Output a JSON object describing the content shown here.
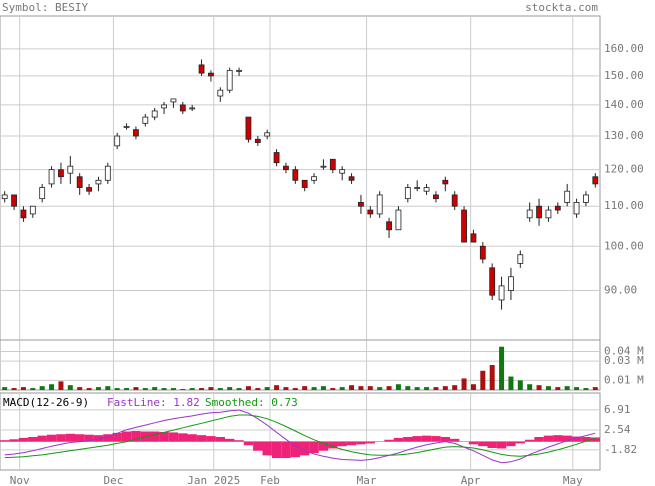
{
  "header": {
    "symbol": "Symbol: BESIY",
    "site": "stockta.com"
  },
  "chart_data": [
    {
      "type": "candlestick",
      "x": [
        0,
        1,
        2,
        3,
        4,
        5,
        6,
        7,
        8,
        9,
        10,
        11,
        12,
        13,
        14,
        15,
        16,
        17,
        18,
        19,
        20,
        21,
        22,
        23,
        24,
        25,
        26,
        27,
        28,
        29,
        30,
        31,
        32,
        33,
        34,
        35,
        36,
        37,
        38,
        39,
        40,
        41,
        42,
        43,
        44,
        45,
        46,
        47,
        48,
        49,
        50,
        51,
        52,
        53,
        54,
        55,
        56,
        57,
        58,
        59,
        60,
        61,
        62,
        63
      ],
      "open": [
        112,
        113,
        109,
        108,
        112,
        116,
        120,
        119,
        118,
        115,
        116,
        117,
        127,
        133,
        132,
        134,
        136,
        139,
        141,
        140,
        139,
        154,
        151,
        143,
        145,
        152,
        136,
        129,
        130,
        125,
        121,
        120,
        117,
        117,
        121,
        123,
        119,
        118,
        111,
        109,
        108,
        106,
        104,
        112,
        115,
        114,
        113,
        117,
        113,
        109,
        103,
        100,
        95,
        88,
        90,
        96,
        107,
        110,
        107,
        110,
        111,
        108,
        111,
        118
      ],
      "high": [
        114,
        113,
        110,
        110,
        116,
        121,
        122,
        124,
        119,
        116,
        118,
        122,
        131,
        134,
        133,
        137,
        139,
        141,
        142,
        141,
        140,
        156,
        152,
        146,
        153,
        153,
        136,
        130,
        132,
        126,
        122,
        121,
        117,
        119,
        123,
        123,
        121,
        119,
        113,
        110,
        114,
        107,
        110,
        116,
        117,
        116,
        114,
        118,
        114,
        110,
        104,
        101,
        96,
        93,
        95,
        99,
        111,
        112,
        110,
        111,
        116,
        112,
        114,
        119
      ],
      "low": [
        111,
        109,
        106,
        107,
        111,
        115,
        116,
        116,
        113,
        113,
        114,
        116,
        126,
        132,
        129,
        133,
        135,
        137,
        139,
        137,
        138,
        150,
        148,
        141,
        144,
        150,
        128,
        127,
        129,
        121,
        119,
        116,
        114,
        116,
        120,
        119,
        117,
        116,
        108,
        107,
        107,
        102,
        104,
        111,
        114,
        113,
        111,
        114,
        109,
        101,
        101,
        96,
        88,
        86,
        88,
        95,
        106,
        105,
        106,
        108,
        110,
        107,
        110,
        115
      ],
      "close": [
        113,
        110,
        107,
        110,
        115,
        120,
        118,
        121,
        115,
        114,
        117,
        121,
        130,
        133,
        130,
        136,
        138,
        140,
        142,
        138,
        139,
        151,
        150,
        145,
        152,
        152,
        129,
        128,
        131,
        122,
        120,
        117,
        115,
        118,
        121,
        120,
        120,
        117,
        110,
        108,
        113,
        104,
        109,
        115,
        115,
        115,
        112,
        116,
        110,
        101,
        101,
        97,
        89,
        91,
        93,
        98,
        109,
        107,
        109,
        109,
        114,
        111,
        113,
        116
      ],
      "xlim": [
        -0.5,
        63.5
      ],
      "xticks": [
        {
          "value": 1.6,
          "label": "Nov"
        },
        {
          "value": 11.6,
          "label": "Dec"
        },
        {
          "value": 22.3,
          "label": "Jan 2025"
        },
        {
          "value": 28.3,
          "label": "Feb"
        },
        {
          "value": 38.6,
          "label": "Mar"
        },
        {
          "value": 49.7,
          "label": "Apr"
        },
        {
          "value": 60.6,
          "label": "May"
        }
      ],
      "ylim": [
        80,
        173
      ],
      "log_scale": true,
      "yticks": [
        {
          "value": 160,
          "label": "160.00"
        },
        {
          "value": 150,
          "label": "150.00"
        },
        {
          "value": 140,
          "label": "140.00"
        },
        {
          "value": 130,
          "label": "130.00"
        },
        {
          "value": 120,
          "label": "120.00"
        },
        {
          "value": 110,
          "label": "110.00"
        },
        {
          "value": 100,
          "label": "100.00"
        },
        {
          "value": 90,
          "label": "90.00"
        }
      ],
      "grid": true,
      "up_color": "#ffffff",
      "down_color": "#cc0000"
    },
    {
      "type": "bar",
      "values": [
        0.003,
        0.002,
        0.003,
        0.002,
        0.004,
        0.006,
        0.009,
        0.005,
        0.003,
        0.002,
        0.003,
        0.004,
        0.002,
        0.002,
        0.003,
        0.002,
        0.003,
        0.002,
        0.002,
        0.001,
        0.002,
        0.002,
        0.003,
        0.002,
        0.003,
        0.002,
        0.004,
        0.002,
        0.003,
        0.005,
        0.003,
        0.002,
        0.004,
        0.003,
        0.004,
        0.002,
        0.003,
        0.005,
        0.004,
        0.004,
        0.003,
        0.004,
        0.006,
        0.004,
        0.003,
        0.003,
        0.003,
        0.004,
        0.005,
        0.012,
        0.006,
        0.02,
        0.026,
        0.045,
        0.014,
        0.01,
        0.006,
        0.005,
        0.004,
        0.003,
        0.004,
        0.003,
        0.002,
        0.003
      ],
      "ylim": [
        0,
        0.052
      ],
      "yticks": [
        {
          "value": 0.04,
          "label": "0.04 M"
        },
        {
          "value": 0.03,
          "label": "0.03 M"
        },
        {
          "value": 0.01,
          "label": "0.01 M"
        }
      ],
      "grid": true,
      "up_color": "#117711",
      "down_color": "#aa1111"
    },
    {
      "type": "macd",
      "title": "MACD(12-26-9)",
      "series": [
        {
          "name": "FastLine: 1.82",
          "color": "#9933cc",
          "values": [
            -2.9,
            -2.7,
            -2.4,
            -2.0,
            -1.5,
            -1.0,
            -0.6,
            -0.2,
            0.0,
            0.2,
            0.5,
            1.0,
            1.8,
            2.6,
            3.1,
            3.6,
            4.1,
            4.6,
            5.0,
            5.3,
            5.6,
            6.0,
            6.3,
            6.4,
            6.7,
            6.9,
            6.2,
            5.0,
            3.6,
            2.0,
            0.5,
            -1.0,
            -2.0,
            -2.7,
            -3.2,
            -3.6,
            -3.9,
            -4.0,
            -4.1,
            -3.9,
            -3.5,
            -3.0,
            -2.5,
            -1.8,
            -1.2,
            -0.7,
            -0.3,
            0.0,
            -0.4,
            -1.2,
            -2.0,
            -3.0,
            -4.0,
            -4.6,
            -4.4,
            -3.8,
            -2.8,
            -2.0,
            -1.2,
            -0.5,
            0.2,
            0.8,
            1.3,
            1.82
          ]
        },
        {
          "name": "Smoothed: 0.73",
          "color": "#119911",
          "values": [
            -3.5,
            -3.4,
            -3.3,
            -3.1,
            -2.9,
            -2.6,
            -2.3,
            -2.0,
            -1.7,
            -1.4,
            -1.1,
            -0.8,
            -0.4,
            0.0,
            0.5,
            1.0,
            1.5,
            2.0,
            2.5,
            3.0,
            3.5,
            4.0,
            4.5,
            5.0,
            5.5,
            5.8,
            5.8,
            5.5,
            5.0,
            4.2,
            3.3,
            2.3,
            1.3,
            0.4,
            -0.4,
            -1.1,
            -1.7,
            -2.2,
            -2.6,
            -2.9,
            -3.0,
            -3.0,
            -2.9,
            -2.7,
            -2.4,
            -2.0,
            -1.6,
            -1.2,
            -1.1,
            -1.2,
            -1.4,
            -1.8,
            -2.3,
            -2.8,
            -3.1,
            -3.2,
            -3.0,
            -2.7,
            -2.3,
            -1.8,
            -1.2,
            -0.6,
            0.1,
            0.73
          ]
        }
      ],
      "histogram": {
        "color": "#ee2277",
        "values": [
          0.3,
          0.5,
          0.8,
          1.0,
          1.3,
          1.5,
          1.6,
          1.7,
          1.6,
          1.5,
          1.4,
          1.6,
          1.9,
          2.2,
          2.3,
          2.2,
          2.2,
          2.1,
          2.0,
          1.8,
          1.6,
          1.4,
          1.2,
          1.0,
          0.6,
          0.3,
          -0.8,
          -2.0,
          -3.0,
          -3.6,
          -3.6,
          -3.4,
          -3.0,
          -2.5,
          -2.0,
          -1.5,
          -1.0,
          -0.8,
          -0.6,
          -0.4,
          0.0,
          0.4,
          0.8,
          1.0,
          1.2,
          1.3,
          1.2,
          1.0,
          0.6,
          0.0,
          -0.6,
          -1.0,
          -1.4,
          -1.5,
          -1.0,
          -0.4,
          0.4,
          1.0,
          1.3,
          1.4,
          1.3,
          1.1,
          1.0,
          0.9
        ]
      },
      "ylim": [
        -6.2,
        10.6
      ],
      "yticks": [
        6.91,
        2.54,
        -1.82
      ],
      "grid": true
    }
  ]
}
